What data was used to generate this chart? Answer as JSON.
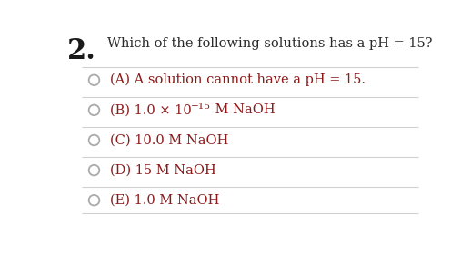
{
  "question_number": "2.",
  "question_text": "Which of the following solutions has a pH = 15?",
  "options_plain": [
    "(A) A solution cannot have a pH = 15.",
    "(C) 10.0 M NaOH",
    "(D) 15 M NaOH",
    "(E) 1.0 M NaOH"
  ],
  "option_b_main": "(B) 1.0 × 10",
  "option_b_sup": "−15",
  "option_b_tail": " M NaOH",
  "bg_color": "#ffffff",
  "text_color": "#8B1A1A",
  "question_color": "#2B2B2B",
  "number_color": "#1a1a1a",
  "box_border_color": "#d0d0d0",
  "circle_edge_color": "#aaaaaa",
  "font_size_question": 10.5,
  "font_size_options": 10.5,
  "font_size_number": 22,
  "font_size_sup": 7.5
}
